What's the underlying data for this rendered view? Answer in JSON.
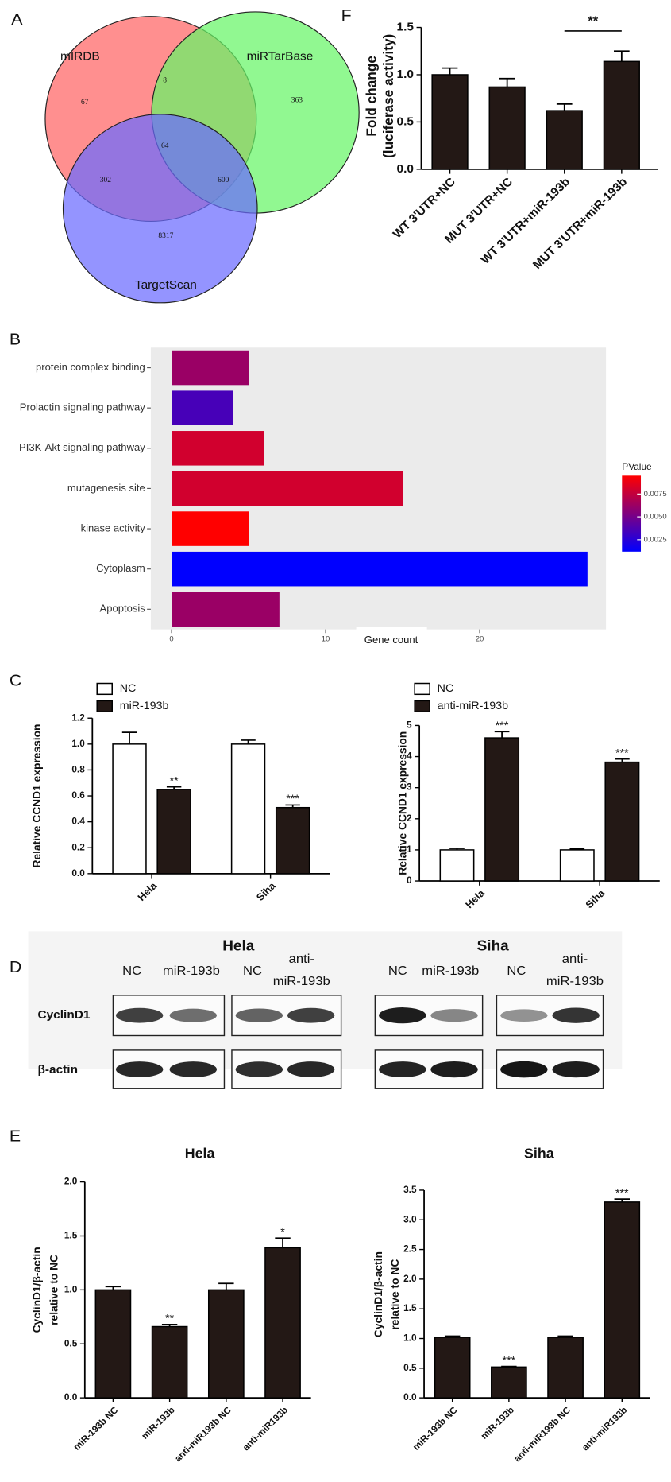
{
  "panel_labels": [
    "A",
    "F",
    "B",
    "C",
    "D",
    "E"
  ],
  "chart_data": [
    {
      "type": "venn",
      "sets": [
        {
          "name": "mIRDB",
          "color": "#ff6464"
        },
        {
          "name": "miRTarBase",
          "color": "#66f566"
        },
        {
          "name": "TargetScan",
          "color": "#6b6bff"
        }
      ],
      "values": [
        67,
        8,
        363,
        64,
        302,
        600,
        8317
      ]
    },
    {
      "type": "bar",
      "ylabel": [
        "Fold change",
        "(luciferase activity)"
      ],
      "categories": [
        "WT 3'UTR+NC",
        "MUT 3'UTR+NC",
        "WT 3'UTR+miR-193b",
        "MUT 3'UTR+miR-193b"
      ],
      "series": [
        {
          "color": "#231815",
          "values": [
            1.0,
            0.87,
            0.62,
            1.14
          ],
          "errors": [
            0.07,
            0.09,
            0.07,
            0.11
          ]
        }
      ],
      "ylim": [
        0,
        1.5
      ],
      "yticks": [
        {
          "value": 0,
          "label": "0.0"
        },
        0.5,
        {
          "value": 1,
          "label": "1.0"
        },
        1.5
      ],
      "significance": "**"
    },
    {
      "type": "hbar",
      "xlabel": "Gene count",
      "categories": [
        "protein complex binding",
        "Prolactin signaling pathway",
        "PI3K-Akt signaling pathway",
        "mutagenesis site",
        "kinase activity",
        "Cytoplasm",
        "Apoptosis"
      ],
      "values": [
        5,
        4,
        6,
        15,
        5,
        27,
        7
      ],
      "pvalues": [
        0.0062,
        0.0035,
        0.008,
        0.008,
        0.0095,
        0.0012,
        0.0062
      ],
      "colorbar_title": "PValue",
      "clim": [
        0.0012,
        0.0095
      ],
      "colorbar_ticks": [
        0.0025,
        {
          "value": 0.005,
          "label": "0.0050"
        },
        0.0075
      ],
      "colors": [
        "#0000ff",
        "#ff0000"
      ],
      "xlim": [
        -1.35,
        28.2
      ],
      "xticks": [
        0,
        10,
        20
      ]
    },
    {
      "type": "bar",
      "ylabel": [
        "Relative CCND1 expression"
      ],
      "categories": [
        "Hela",
        "Siha"
      ],
      "series": [
        {
          "name": "NC",
          "color": "#ffffff",
          "values": [
            1.0,
            1.0
          ],
          "errors": [
            0.09,
            0.03
          ]
        },
        {
          "name": "miR-193b",
          "color": "#231815",
          "values": [
            0.65,
            0.51
          ],
          "errors": [
            0.02,
            0.02
          ],
          "annotations": [
            "**",
            "***"
          ]
        }
      ],
      "ylim": [
        0,
        1.2
      ],
      "yticks": [
        {
          "value": 0,
          "label": "0.0"
        },
        0.2,
        0.4,
        0.6,
        0.8,
        {
          "value": 1,
          "label": "1.0"
        },
        1.2
      ]
    },
    {
      "type": "bar",
      "ylabel": [
        "Relative CCND1 expression"
      ],
      "categories": [
        "Hela",
        "Siha"
      ],
      "series": [
        {
          "name": "NC",
          "color": "#ffffff",
          "values": [
            1.0,
            1.0
          ],
          "errors": [
            0.05,
            0.03
          ]
        },
        {
          "name": "anti-miR-193b",
          "color": "#231815",
          "values": [
            4.6,
            3.82
          ],
          "errors": [
            0.2,
            0.1
          ],
          "annotations": [
            "***",
            "***"
          ]
        }
      ],
      "ylim": [
        0,
        5
      ],
      "yticks": [
        0,
        1,
        2,
        3,
        4,
        5
      ]
    },
    {
      "type": "bar",
      "title": "Hela",
      "ylabel": [
        "CyclinD1/β-actin",
        "relative to NC"
      ],
      "categories": [
        "miR-193b NC",
        "miR-193b",
        "anti-miR193b NC",
        "anti-miR193b"
      ],
      "series": [
        {
          "color": "#231815",
          "values": [
            1.0,
            0.66,
            1.0,
            1.39
          ],
          "errors": [
            0.03,
            0.02,
            0.06,
            0.09
          ],
          "annotations": [
            null,
            "**",
            null,
            "*"
          ]
        }
      ],
      "ylim": [
        0,
        2
      ],
      "yticks": [
        {
          "value": 0,
          "label": "0.0"
        },
        0.5,
        {
          "value": 1,
          "label": "1.0"
        },
        1.5,
        {
          "value": 2,
          "label": "2.0"
        }
      ]
    },
    {
      "type": "bar",
      "title": "Siha",
      "ylabel": [
        "CyclinD1/β-actin",
        "relative to NC"
      ],
      "categories": [
        "miR-193b NC",
        "miR-193b",
        "anti-miR193b NC",
        "anti-miR193b"
      ],
      "series": [
        {
          "color": "#231815",
          "values": [
            1.02,
            0.52,
            1.02,
            3.3
          ],
          "errors": [
            0.02,
            0.01,
            0.02,
            0.05
          ],
          "annotations": [
            null,
            "***",
            null,
            "***"
          ]
        }
      ],
      "ylim": [
        0,
        3.5
      ],
      "yticks": [
        {
          "value": 0,
          "label": "0.0"
        },
        0.5,
        {
          "value": 1,
          "label": "1.0"
        },
        1.5,
        {
          "value": 2,
          "label": "2.0"
        },
        2.5,
        {
          "value": 3,
          "label": "3.0"
        },
        3.5
      ]
    }
  ],
  "western_blot": {
    "cell_lines": [
      "Hela",
      "Siha"
    ],
    "lanes": [
      [
        "NC"
      ],
      [
        "miR-193b"
      ],
      [
        "NC"
      ],
      [
        "anti-",
        "miR-193b"
      ],
      [
        "NC"
      ],
      [
        "miR-193b"
      ],
      [
        "NC"
      ],
      [
        "anti-",
        "miR-193b"
      ]
    ],
    "rows": [
      "CyclinD1",
      "β-actin"
    ]
  }
}
